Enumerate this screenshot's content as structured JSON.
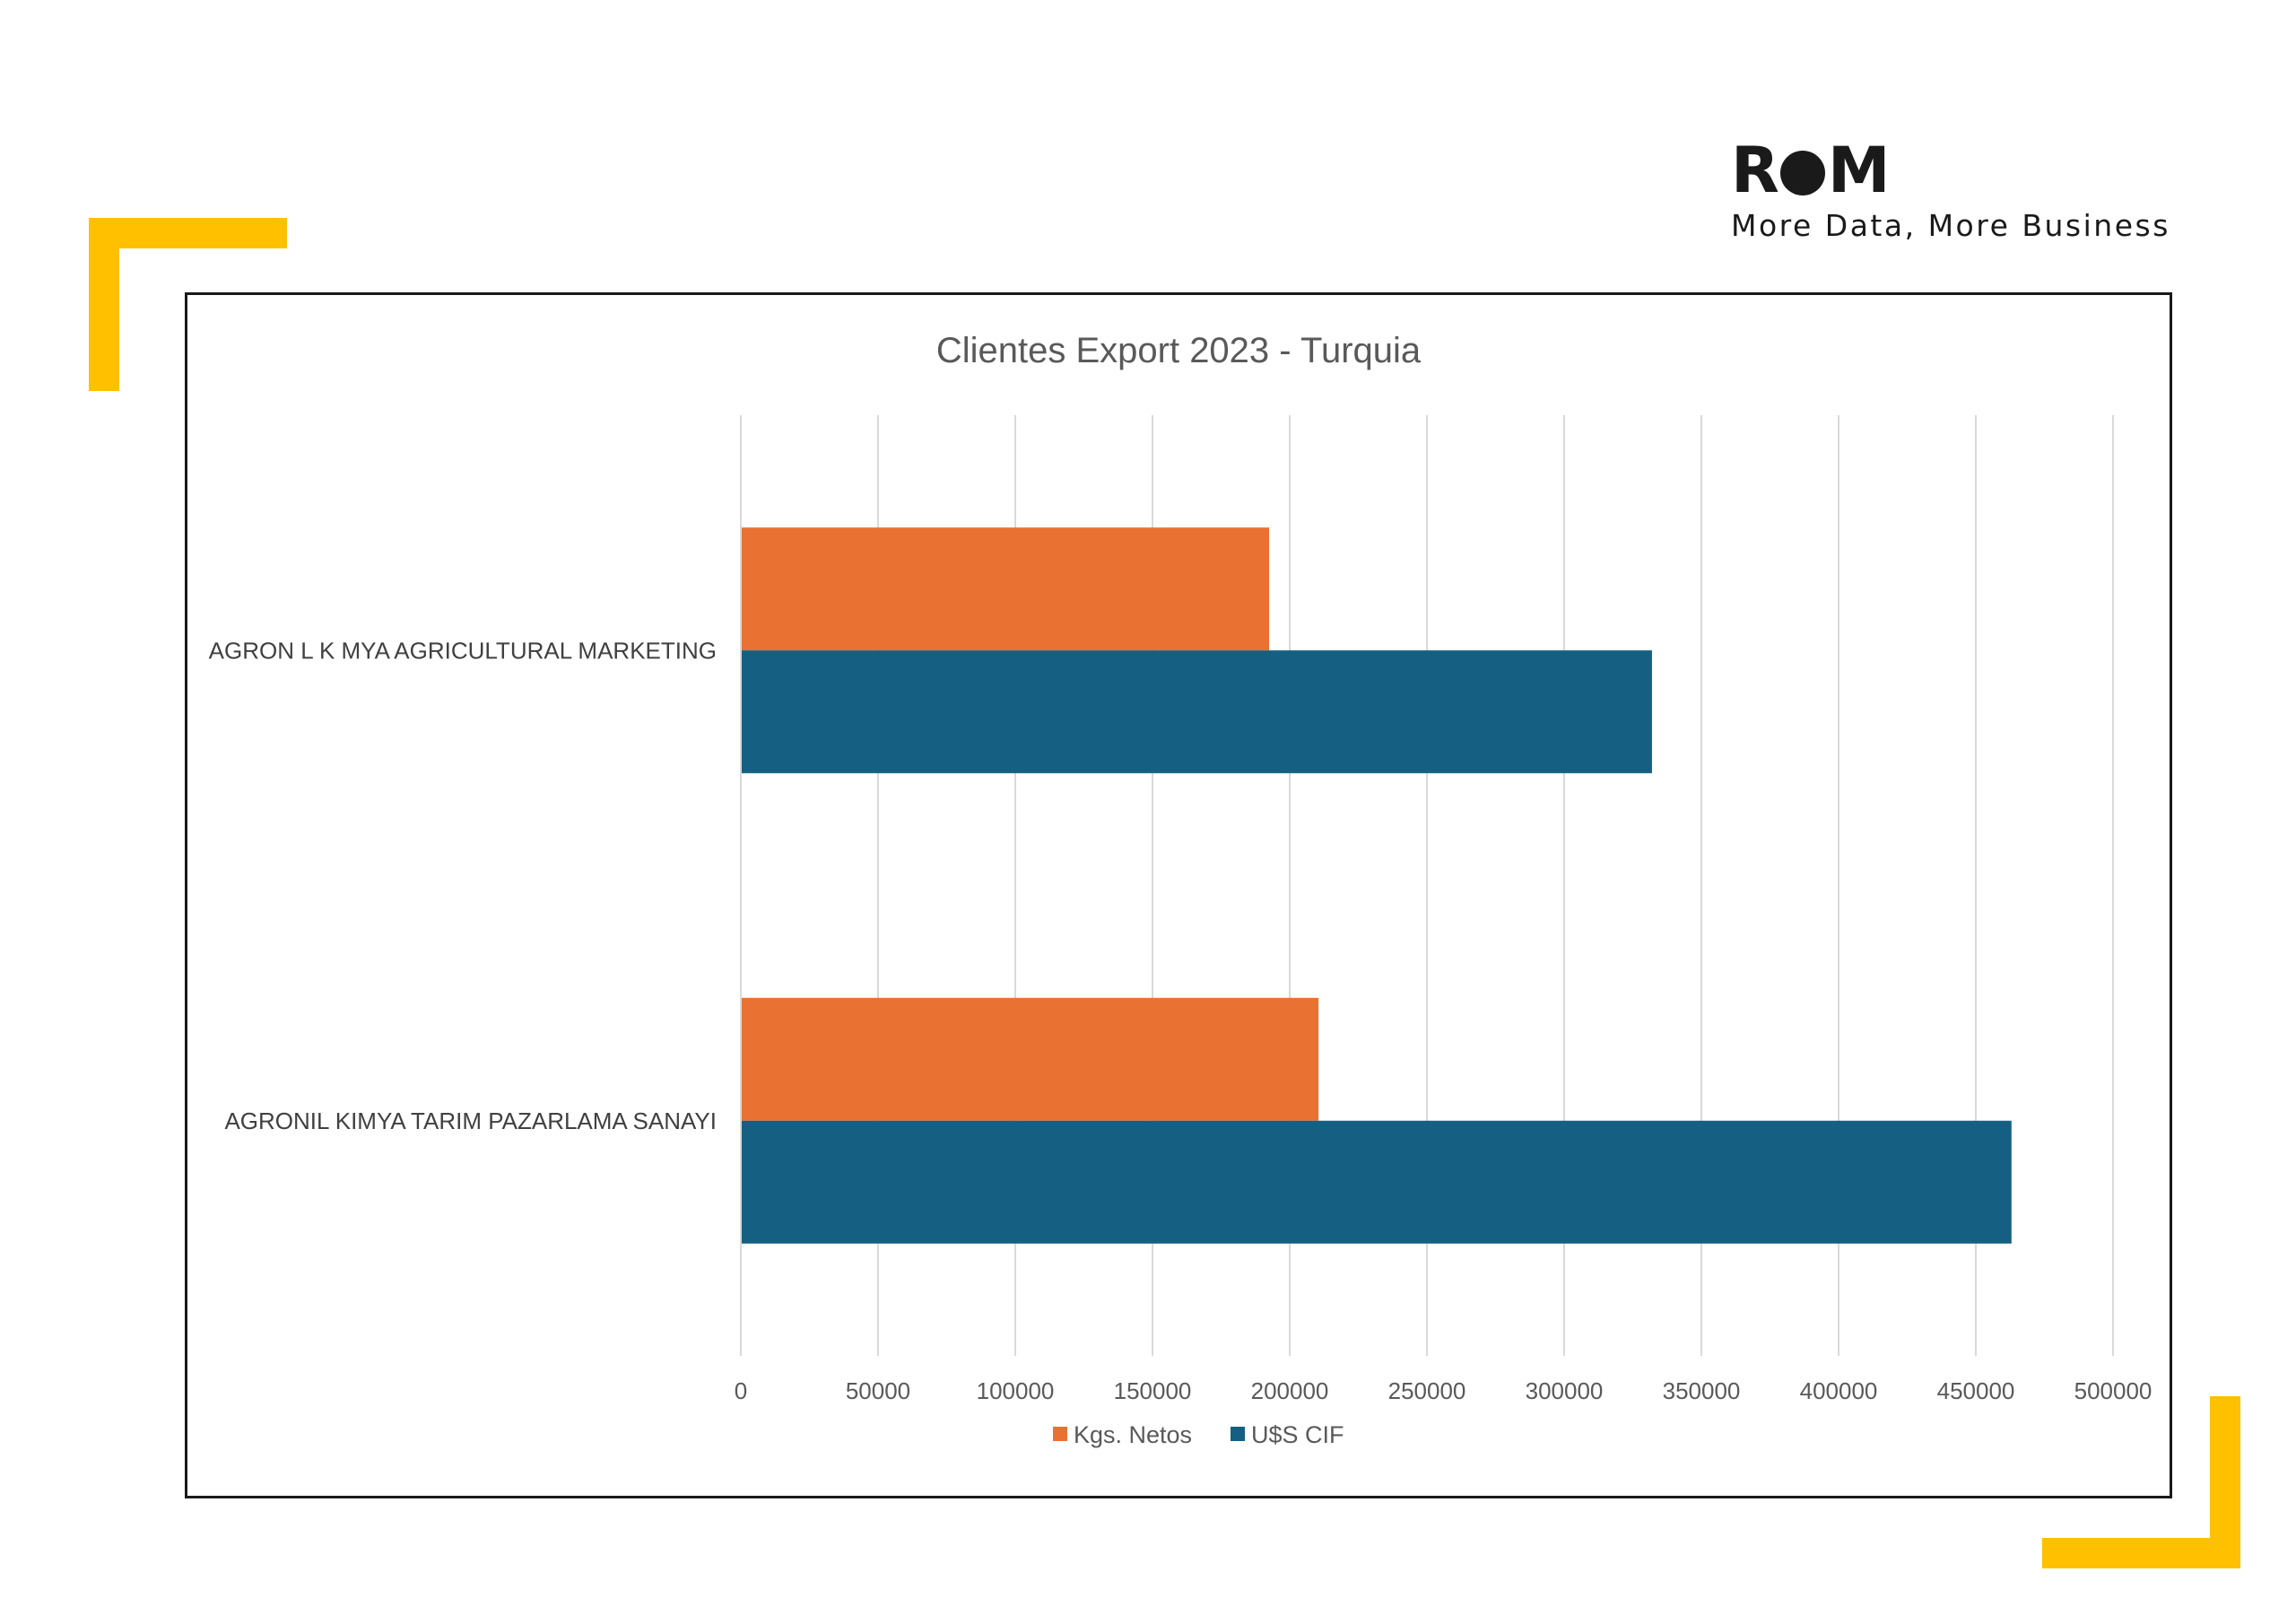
{
  "brand": {
    "logo_text": "ROM",
    "tagline": "More Data, More Business",
    "accent_color": "#FFC000"
  },
  "chart_data": {
    "type": "bar",
    "orientation": "horizontal",
    "title": "Clientes Export 2023 - Turquia",
    "categories": [
      "AGRON L K MYA AGRICULTURAL MARKETING",
      "AGRONIL KIMYA TARIM PAZARLAMA SANAYI"
    ],
    "series": [
      {
        "name": "Kgs. Netos",
        "values": [
          192500,
          210500
        ],
        "color": "#E97132"
      },
      {
        "name": "U$S CIF",
        "values": [
          332000,
          463000
        ],
        "color": "#156082"
      }
    ],
    "xlim": [
      0,
      500000
    ],
    "xticks": [
      0,
      50000,
      100000,
      150000,
      200000,
      250000,
      300000,
      350000,
      400000,
      450000,
      500000
    ],
    "grid": "vertical",
    "legend": "bottom"
  }
}
